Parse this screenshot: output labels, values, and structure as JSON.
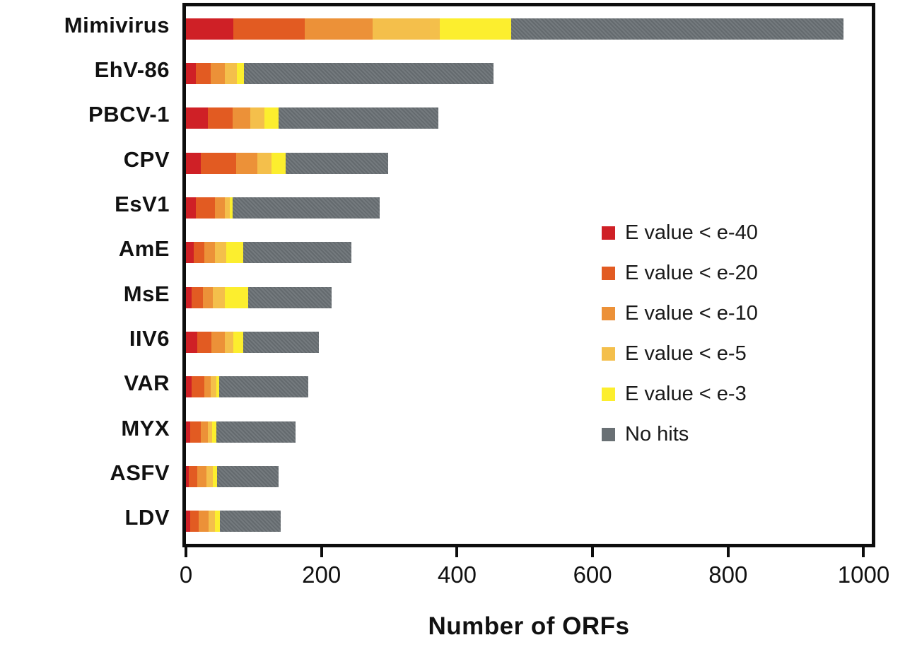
{
  "chart_data": {
    "type": "bar",
    "stacked": true,
    "orientation": "horizontal",
    "title": "",
    "xlabel": "Number of ORFs",
    "ylabel": "",
    "xlim": [
      0,
      1012
    ],
    "x_ticks": [
      0,
      200,
      400,
      600,
      800,
      1000
    ],
    "grid": false,
    "legend_position": "inside-right",
    "categories": [
      "Mimivirus",
      "EhV-86",
      "PBCV-1",
      "CPV",
      "EsV1",
      "AmE",
      "MsE",
      "IIV6",
      "VAR",
      "MYX",
      "ASFV",
      "LDV"
    ],
    "series": [
      {
        "name": "E value < e-40",
        "color": "#cf2026",
        "values": [
          70,
          15,
          32,
          22,
          15,
          11,
          8,
          17,
          8,
          6,
          4,
          6
        ]
      },
      {
        "name": "E value < e-20",
        "color": "#e25b22",
        "values": [
          105,
          21,
          37,
          52,
          28,
          16,
          17,
          21,
          19,
          16,
          13,
          13
        ]
      },
      {
        "name": "E value < e-10",
        "color": "#ec9138",
        "values": [
          100,
          21,
          26,
          31,
          14,
          16,
          15,
          19,
          10,
          10,
          13,
          14
        ]
      },
      {
        "name": "E value < e-5",
        "color": "#f4bf4b",
        "values": [
          100,
          18,
          21,
          21,
          8,
          16,
          17,
          13,
          8,
          7,
          10,
          10
        ]
      },
      {
        "name": "E value < e-3",
        "color": "#fcee2e",
        "values": [
          105,
          11,
          21,
          21,
          4,
          26,
          35,
          14,
          4,
          6,
          6,
          7
        ]
      },
      {
        "name": "No hits",
        "color": "#697074",
        "values": [
          490,
          368,
          235,
          151,
          217,
          159,
          123,
          112,
          132,
          117,
          91,
          90
        ]
      }
    ]
  }
}
